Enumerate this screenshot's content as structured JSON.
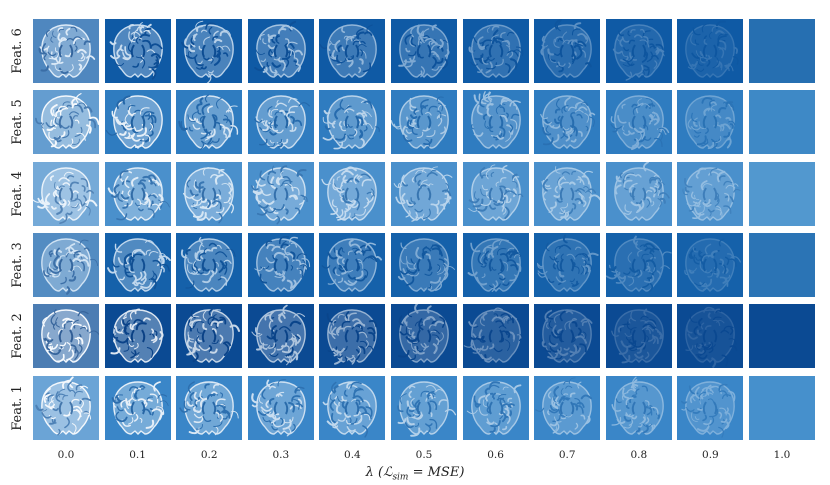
{
  "figure": {
    "rows": [
      {
        "label": "Feat. 6",
        "bg": "#0f5aa5",
        "tissue": "#dceaf7",
        "fade": 0.9
      },
      {
        "label": "Feat. 5",
        "bg": "#2f7cc0",
        "tissue": "#f4f8fc",
        "fade": 0.75
      },
      {
        "label": "Feat. 4",
        "bg": "#4a90cc",
        "tissue": "#e9f2fa",
        "fade": 0.6
      },
      {
        "label": "Feat. 3",
        "bg": "#1561aa",
        "tissue": "#cfe2f3",
        "fade": 0.85
      },
      {
        "label": "Feat. 2",
        "bg": "#0b4a93",
        "tissue": "#f5f9fd",
        "fade": 1.0
      },
      {
        "label": "Feat. 1",
        "bg": "#3a86c8",
        "tissue": "#f4f8fc",
        "fade": 0.7
      }
    ],
    "columns": [
      "0.0",
      "0.1",
      "0.2",
      "0.3",
      "0.4",
      "0.5",
      "0.6",
      "0.7",
      "0.8",
      "0.9",
      "1.0"
    ],
    "x_axis_label": "λ (ℒsim = MSE)",
    "x_axis_label_parts": {
      "lambda": "λ",
      "open": " (",
      "script": "ℒ",
      "sub": "sim",
      "eq": " = MSE)"
    },
    "colormap": [
      "#f7fbff",
      "#c6dbef",
      "#6baed6",
      "#2171b5",
      "#08306b"
    ]
  }
}
